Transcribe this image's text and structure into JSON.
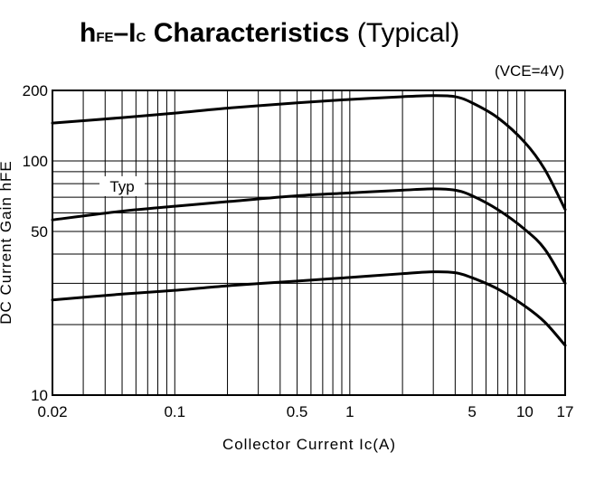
{
  "chart_data": {
    "type": "line",
    "title": {
      "h": "h",
      "fe": "FE",
      "dash": "–I",
      "c": "C",
      "rest": " Characteristics",
      "typical": " (Typical)"
    },
    "condition": "(VCE=4V)",
    "xlabel": "Collector Current Ic(A)",
    "ylabel": "DC Current Gain hFE",
    "x_scale": "log",
    "y_scale": "log",
    "xlim": [
      0.02,
      17
    ],
    "ylim": [
      10,
      200
    ],
    "grid": true,
    "x_ticks": [
      {
        "value": 0.02,
        "label": "0.02"
      },
      {
        "value": 0.1,
        "label": "0.1"
      },
      {
        "value": 0.5,
        "label": "0.5"
      },
      {
        "value": 1,
        "label": "1"
      },
      {
        "value": 5,
        "label": "5"
      },
      {
        "value": 10,
        "label": "10"
      },
      {
        "value": 17,
        "label": "17"
      }
    ],
    "y_ticks": [
      {
        "value": 10,
        "label": "10"
      },
      {
        "value": 50,
        "label": "50"
      },
      {
        "value": 100,
        "label": "100"
      },
      {
        "value": 200,
        "label": "200"
      }
    ],
    "x_grid": [
      0.02,
      0.03,
      0.04,
      0.05,
      0.06,
      0.07,
      0.08,
      0.09,
      0.1,
      0.2,
      0.3,
      0.4,
      0.5,
      0.6,
      0.7,
      0.8,
      0.9,
      1,
      2,
      3,
      4,
      5,
      6,
      7,
      8,
      9,
      10,
      17
    ],
    "y_grid": [
      10,
      20,
      30,
      40,
      50,
      60,
      70,
      80,
      90,
      100,
      200
    ],
    "annotation": {
      "text": "Typ",
      "x": 0.05,
      "y": 78
    },
    "series": [
      {
        "name": "",
        "x": [
          0.02,
          0.05,
          0.1,
          0.2,
          0.5,
          1,
          2,
          3,
          4,
          5,
          7,
          10,
          13,
          17
        ],
        "y": [
          145,
          153,
          160,
          168,
          177,
          183,
          188,
          190,
          188,
          177,
          153,
          120,
          92,
          62
        ]
      },
      {
        "name": "Typ",
        "x": [
          0.02,
          0.05,
          0.1,
          0.2,
          0.5,
          1,
          2,
          3,
          4,
          5,
          7,
          10,
          13,
          17
        ],
        "y": [
          56,
          61,
          64,
          67,
          71,
          73,
          75,
          76,
          75,
          71,
          62,
          51,
          42,
          30
        ]
      },
      {
        "name": "",
        "x": [
          0.02,
          0.05,
          0.1,
          0.2,
          0.5,
          1,
          2,
          3,
          4,
          5,
          7,
          10,
          13,
          17
        ],
        "y": [
          25.5,
          27,
          28,
          29.3,
          30.7,
          31.8,
          33,
          33.6,
          33.3,
          31.7,
          28.4,
          24,
          20.5,
          16.3
        ]
      }
    ]
  }
}
